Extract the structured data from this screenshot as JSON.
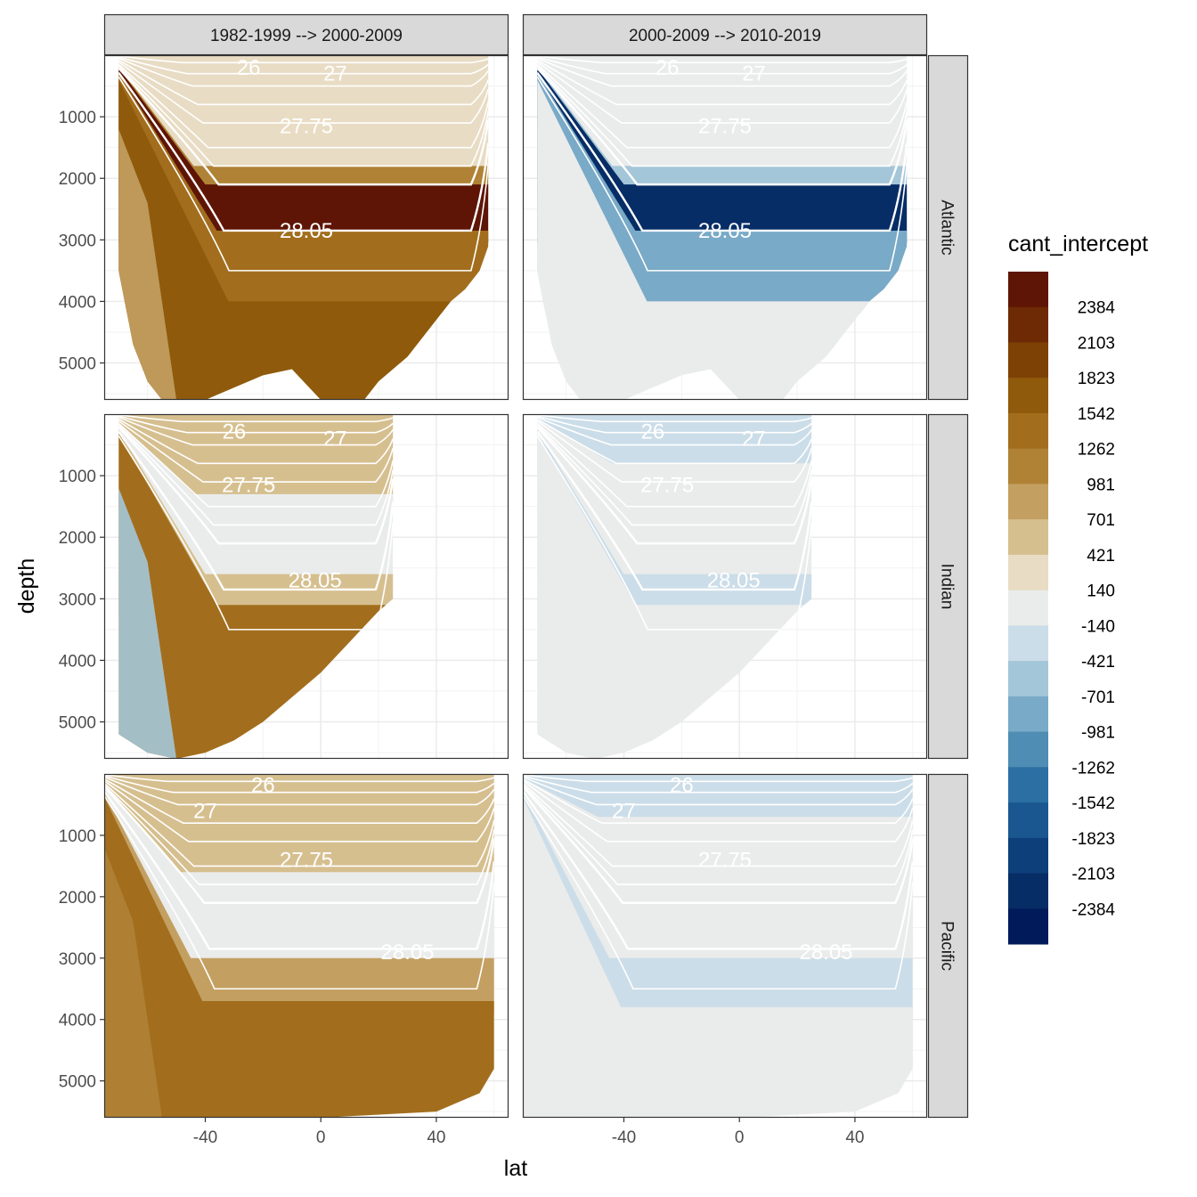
{
  "chart_data": {
    "type": "heatmap",
    "xlabel": "lat",
    "ylabel": "depth",
    "x_ticks": [
      -40,
      0,
      40
    ],
    "y_ticks": [
      1000,
      2000,
      3000,
      4000,
      5000
    ],
    "xlim": [
      -75,
      65
    ],
    "ylim": [
      5600,
      0
    ],
    "y_reversed": true,
    "columns": [
      "1982-1999 --> 2000-2009",
      "2000-2009 --> 2010-2019"
    ],
    "rows": [
      "Atlantic",
      "Indian",
      "Pacific"
    ],
    "legend": {
      "title": "cant_intercept",
      "placement": "right",
      "labels": [
        "2384",
        "2103",
        "1823",
        "1542",
        "1262",
        "981",
        "701",
        "421",
        "140",
        "-140",
        "-421",
        "-701",
        "-981",
        "-1262",
        "-1542",
        "-1823",
        "-2103",
        "-2384"
      ],
      "colors": [
        "#5e1505",
        "#6e2a05",
        "#7e4105",
        "#8f5a0b",
        "#a26e1d",
        "#b08236",
        "#c3a062",
        "#d6bf8f",
        "#e8dcc4",
        "#eaeceb",
        "#cbdde8",
        "#a4c6d9",
        "#79aac7",
        "#4f8db4",
        "#2c6fa3",
        "#1a5791",
        "#0d3f7a",
        "#072d66",
        "#001a5a"
      ]
    },
    "isopycnal_labels": [
      "26",
      "27",
      "27.75",
      "28.05"
    ],
    "grid": true,
    "panels": [
      {
        "column": "1982-1999 --> 2000-2009",
        "row": "Atlantic",
        "bottom_depth": [
          [
            -70,
            3500
          ],
          [
            -65,
            4700
          ],
          [
            -60,
            5300
          ],
          [
            -55,
            5600
          ],
          [
            -40,
            5600
          ],
          [
            -30,
            5400
          ],
          [
            -20,
            5200
          ],
          [
            -10,
            5100
          ],
          [
            0,
            5600
          ],
          [
            5,
            5600
          ],
          [
            10,
            5600
          ],
          [
            15,
            5600
          ],
          [
            20,
            5300
          ],
          [
            30,
            4900
          ],
          [
            40,
            4300
          ],
          [
            45,
            4000
          ],
          [
            50,
            3800
          ],
          [
            55,
            3500
          ],
          [
            58,
            3100
          ]
        ],
        "layers": [
          {
            "top": "surface",
            "class": 140
          },
          {
            "top": 1800,
            "class": 981
          },
          {
            "top": 2100,
            "class": 2384
          },
          {
            "top": 2850,
            "class": 1262
          },
          {
            "top": 4000,
            "class": 1542
          }
        ],
        "west_flank_class": 701
      },
      {
        "column": "2000-2009 --> 2010-2019",
        "row": "Atlantic",
        "bottom_depth": [
          [
            -70,
            3500
          ],
          [
            -65,
            4700
          ],
          [
            -60,
            5300
          ],
          [
            -55,
            5600
          ],
          [
            -40,
            5600
          ],
          [
            -30,
            5400
          ],
          [
            -20,
            5200
          ],
          [
            -10,
            5100
          ],
          [
            0,
            5600
          ],
          [
            5,
            5600
          ],
          [
            10,
            5600
          ],
          [
            15,
            5600
          ],
          [
            20,
            5300
          ],
          [
            30,
            4900
          ],
          [
            40,
            4300
          ],
          [
            45,
            4000
          ],
          [
            50,
            3800
          ],
          [
            55,
            3500
          ],
          [
            58,
            3100
          ]
        ],
        "layers": [
          {
            "top": "surface",
            "class": -140
          },
          {
            "top": 1800,
            "class": -701
          },
          {
            "top": 2100,
            "class": -2384
          },
          {
            "top": 2850,
            "class": -981
          },
          {
            "top": 4000,
            "class": -140
          }
        ],
        "west_flank_class": -140
      },
      {
        "column": "1982-1999 --> 2000-2009",
        "row": "Indian",
        "bottom_depth": [
          [
            -70,
            5200
          ],
          [
            -60,
            5500
          ],
          [
            -50,
            5600
          ],
          [
            -40,
            5500
          ],
          [
            -30,
            5300
          ],
          [
            -20,
            5000
          ],
          [
            -10,
            4600
          ],
          [
            0,
            4200
          ],
          [
            10,
            3700
          ],
          [
            20,
            3200
          ],
          [
            25,
            3000
          ]
        ],
        "layers": [
          {
            "top": "surface",
            "class": 421
          },
          {
            "top": 1300,
            "class": -140
          },
          {
            "top": 2600,
            "class": 421
          },
          {
            "top": 3100,
            "class": 1262
          }
        ],
        "west_flank_class": -701
      },
      {
        "column": "2000-2009 --> 2010-2019",
        "row": "Indian",
        "bottom_depth": [
          [
            -70,
            5200
          ],
          [
            -60,
            5500
          ],
          [
            -50,
            5600
          ],
          [
            -40,
            5500
          ],
          [
            -30,
            5300
          ],
          [
            -20,
            5000
          ],
          [
            -10,
            4600
          ],
          [
            0,
            4200
          ],
          [
            10,
            3700
          ],
          [
            20,
            3200
          ],
          [
            25,
            3000
          ]
        ],
        "layers": [
          {
            "top": "surface",
            "class": -421
          },
          {
            "top": 800,
            "class": -140
          },
          {
            "top": 2600,
            "class": -421
          },
          {
            "top": 3100,
            "class": -140
          }
        ],
        "west_flank_class": -140
      },
      {
        "column": "1982-1999 --> 2000-2009",
        "row": "Pacific",
        "bottom_depth": [
          [
            -75,
            5600
          ],
          [
            -40,
            5600
          ],
          [
            0,
            5600
          ],
          [
            40,
            5500
          ],
          [
            55,
            5200
          ],
          [
            60,
            4800
          ]
        ],
        "layers": [
          {
            "top": "surface",
            "class": 421
          },
          {
            "top": 1600,
            "class": -140
          },
          {
            "top": 3000,
            "class": 701
          },
          {
            "top": 3700,
            "class": 1262
          }
        ],
        "west_flank_class": 981
      },
      {
        "column": "2000-2009 --> 2010-2019",
        "row": "Pacific",
        "bottom_depth": [
          [
            -75,
            5600
          ],
          [
            -40,
            5600
          ],
          [
            0,
            5600
          ],
          [
            40,
            5500
          ],
          [
            55,
            5200
          ],
          [
            60,
            4800
          ]
        ],
        "layers": [
          {
            "top": "surface",
            "class": -421
          },
          {
            "top": 700,
            "class": -140
          },
          {
            "top": 3000,
            "class": -421
          },
          {
            "top": 3800,
            "class": -140
          }
        ],
        "west_flank_class": -140
      }
    ]
  }
}
